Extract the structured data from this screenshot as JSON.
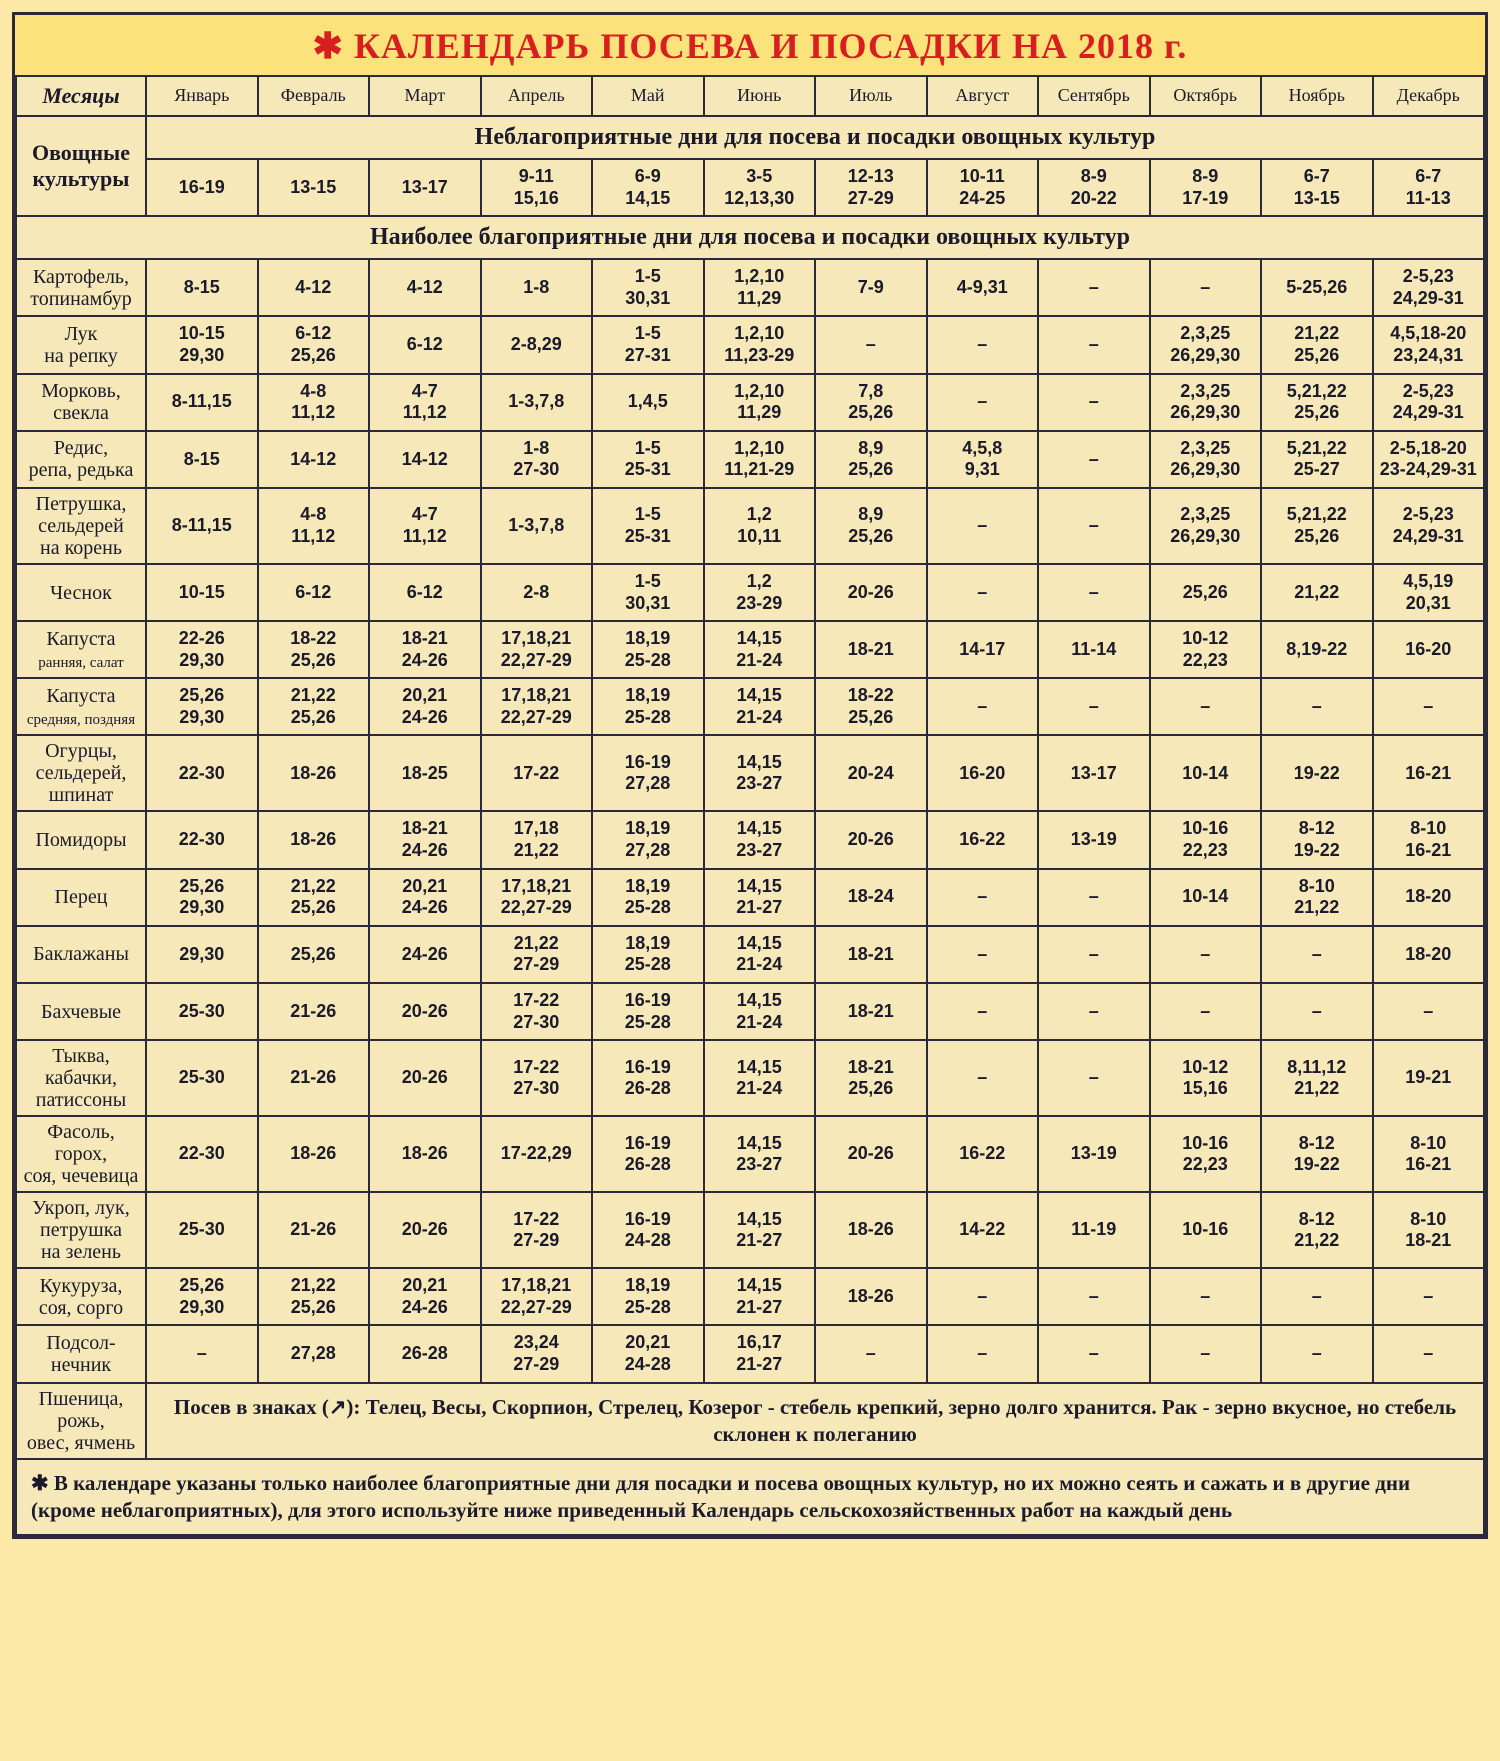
{
  "title": "✱ КАЛЕНДАРЬ ПОСЕВА И ПОСАДКИ НА 2018 г.",
  "header": {
    "months_label": "Месяцы",
    "culture_label": "Овощные культуры",
    "months": [
      "Январь",
      "Февраль",
      "Март",
      "Апрель",
      "Май",
      "Июнь",
      "Июль",
      "Август",
      "Сентябрь",
      "Октябрь",
      "Ноябрь",
      "Декабрь"
    ]
  },
  "section1": {
    "title": "Неблагоприятные дни для посева и посадки овощных культур",
    "values": [
      "16-19",
      "13-15",
      "13-17",
      "9-11 15,16",
      "6-9 14,15",
      "3-5 12,13,30",
      "12-13 27-29",
      "10-11 24-25",
      "8-9 20-22",
      "8-9 17-19",
      "6-7 13-15",
      "6-7 11-13"
    ]
  },
  "section2": {
    "title": "Наиболее благоприятные дни для посева и посадки овощных культур"
  },
  "rows": [
    {
      "label": "Картофель, топинамбур",
      "v": [
        "8-15",
        "4-12",
        "4-12",
        "1-8",
        "1-5 30,31",
        "1,2,10 11,29",
        "7-9",
        "4-9,31",
        "–",
        "–",
        "5-25,26",
        "2-5,23 24,29-31"
      ]
    },
    {
      "label": "Лук на репку",
      "v": [
        "10-15 29,30",
        "6-12 25,26",
        "6-12",
        "2-8,29",
        "1-5 27-31",
        "1,2,10 11,23-29",
        "–",
        "–",
        "–",
        "2,3,25 26,29,30",
        "21,22 25,26",
        "4,5,18-20 23,24,31"
      ]
    },
    {
      "label": "Морковь, свекла",
      "v": [
        "8-11,15",
        "4-8 11,12",
        "4-7 11,12",
        "1-3,7,8",
        "1,4,5",
        "1,2,10 11,29",
        "7,8 25,26",
        "–",
        "–",
        "2,3,25 26,29,30",
        "5,21,22 25,26",
        "2-5,23 24,29-31"
      ]
    },
    {
      "label": "Редис, репа, редька",
      "v": [
        "8-15",
        "14-12",
        "14-12",
        "1-8 27-30",
        "1-5 25-31",
        "1,2,10 11,21-29",
        "8,9 25,26",
        "4,5,8 9,31",
        "–",
        "2,3,25 26,29,30",
        "5,21,22 25-27",
        "2-5,18-20 23-24,29-31"
      ]
    },
    {
      "label": "Петрушка, сельдерей на корень",
      "v": [
        "8-11,15",
        "4-8 11,12",
        "4-7 11,12",
        "1-3,7,8",
        "1-5 25-31",
        "1,2 10,11",
        "8,9 25,26",
        "–",
        "–",
        "2,3,25 26,29,30",
        "5,21,22 25,26",
        "2-5,23 24,29-31"
      ]
    },
    {
      "label": "Чеснок",
      "v": [
        "10-15",
        "6-12",
        "6-12",
        "2-8",
        "1-5 30,31",
        "1,2 23-29",
        "20-26",
        "–",
        "–",
        "25,26",
        "21,22",
        "4,5,19 20,31"
      ]
    },
    {
      "label": "Капуста ранняя, салат",
      "v": [
        "22-26 29,30",
        "18-22 25,26",
        "18-21 24-26",
        "17,18,21 22,27-29",
        "18,19 25-28",
        "14,15 21-24",
        "18-21",
        "14-17",
        "11-14",
        "10-12 22,23",
        "8,19-22",
        "16-20"
      ]
    },
    {
      "label": "Капуста средняя, поздняя",
      "v": [
        "25,26 29,30",
        "21,22 25,26",
        "20,21 24-26",
        "17,18,21 22,27-29",
        "18,19 25-28",
        "14,15 21-24",
        "18-22 25,26",
        "–",
        "–",
        "–",
        "–",
        "–"
      ]
    },
    {
      "label": "Огурцы, сельдерей, шпинат",
      "v": [
        "22-30",
        "18-26",
        "18-25",
        "17-22",
        "16-19 27,28",
        "14,15 23-27",
        "20-24",
        "16-20",
        "13-17",
        "10-14",
        "19-22",
        "16-21"
      ]
    },
    {
      "label": "Помидоры",
      "v": [
        "22-30",
        "18-26",
        "18-21 24-26",
        "17,18 21,22",
        "18,19 27,28",
        "14,15 23-27",
        "20-26",
        "16-22",
        "13-19",
        "10-16 22,23",
        "8-12 19-22",
        "8-10 16-21"
      ]
    },
    {
      "label": "Перец",
      "v": [
        "25,26 29,30",
        "21,22 25,26",
        "20,21 24-26",
        "17,18,21 22,27-29",
        "18,19 25-28",
        "14,15 21-27",
        "18-24",
        "–",
        "–",
        "10-14",
        "8-10 21,22",
        "18-20"
      ]
    },
    {
      "label": "Баклажаны",
      "v": [
        "29,30",
        "25,26",
        "24-26",
        "21,22 27-29",
        "18,19 25-28",
        "14,15 21-24",
        "18-21",
        "–",
        "–",
        "–",
        "–",
        "18-20"
      ]
    },
    {
      "label": "Бахчевые",
      "v": [
        "25-30",
        "21-26",
        "20-26",
        "17-22 27-30",
        "16-19 25-28",
        "14,15 21-24",
        "18-21",
        "–",
        "–",
        "–",
        "–",
        "–"
      ]
    },
    {
      "label": "Тыква, кабачки, патиссоны",
      "v": [
        "25-30",
        "21-26",
        "20-26",
        "17-22 27-30",
        "16-19 26-28",
        "14,15 21-24",
        "18-21 25,26",
        "–",
        "–",
        "10-12 15,16",
        "8,11,12 21,22",
        "19-21"
      ]
    },
    {
      "label": "Фасоль, горох, соя, чечевица",
      "v": [
        "22-30",
        "18-26",
        "18-26",
        "17-22,29",
        "16-19 26-28",
        "14,15 23-27",
        "20-26",
        "16-22",
        "13-19",
        "10-16 22,23",
        "8-12 19-22",
        "8-10 16-21"
      ]
    },
    {
      "label": "Укроп, лук, петрушка на зелень",
      "v": [
        "25-30",
        "21-26",
        "20-26",
        "17-22 27-29",
        "16-19 24-28",
        "14,15 21-27",
        "18-26",
        "14-22",
        "11-19",
        "10-16",
        "8-12 21,22",
        "8-10 18-21"
      ]
    },
    {
      "label": "Кукуруза, соя, сорго",
      "v": [
        "25,26 29,30",
        "21,22 25,26",
        "20,21 24-26",
        "17,18,21 22,27-29",
        "18,19 25-28",
        "14,15 21-27",
        "18-26",
        "–",
        "–",
        "–",
        "–",
        "–"
      ]
    },
    {
      "label": "Подсол- нечник",
      "v": [
        "–",
        "27,28",
        "26-28",
        "23,24 27-29",
        "20,21 24-28",
        "16,17 21-27",
        "–",
        "–",
        "–",
        "–",
        "–",
        "–"
      ]
    }
  ],
  "cereal_label": "Пшеница, рожь, овес, ячмень",
  "cereal_note": "Посев в знаках (↗): Телец, Весы, Скорпион, Стрелец, Козерог - стебель крепкий, зерно долго хранится. Рак - зерно вкусное, но стебель склонен к полеганию",
  "footnote": "✱ В календаре указаны только наиболее благоприятные дни для посадки и посева овощных культур, но их можно сеять и сажать и в другие дни (кроме неблагоприятных), для этого используйте ниже приведенный Календарь сельскохозяйственных работ на каждый день",
  "style": {
    "background": "#fce27a",
    "cell_bg": "#f6e8b8",
    "border": "#2a2a3a",
    "title_color": "#d81e1e",
    "data_font_size": 18,
    "title_font_size": 36
  }
}
